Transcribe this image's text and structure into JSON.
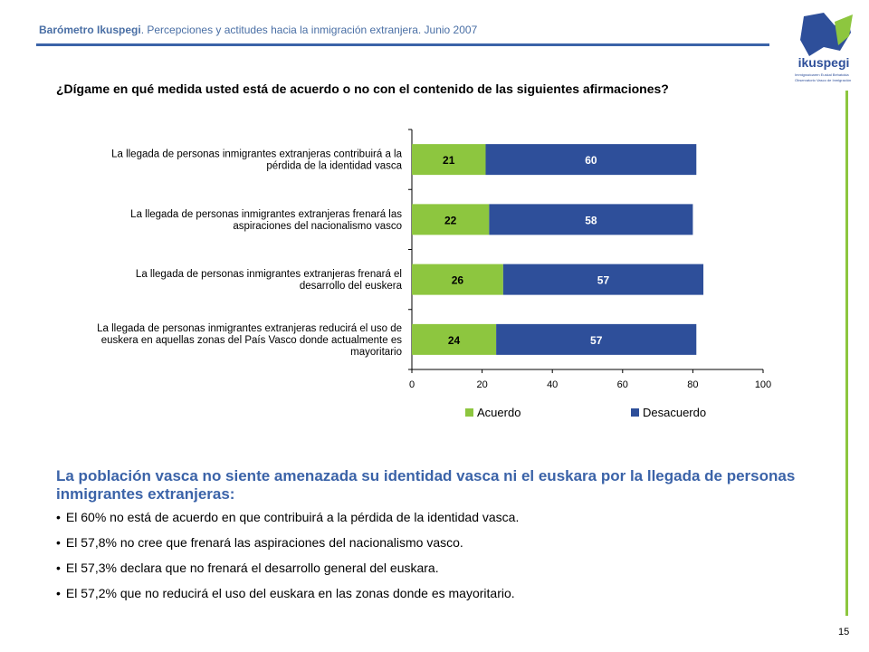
{
  "header": {
    "title_bold": "Barómetro Ikuspegi",
    "title_rest": ". Percepciones y actitudes hacia la inmigración extranjera. Junio 2007"
  },
  "logo": {
    "name": "ikuspegi",
    "subtitle_line1": "Immigrazioaren Euskal Behatokia",
    "subtitle_line2": "Observatorio Vasco de Inmigración",
    "colors": {
      "blue": "#2e4f9a",
      "green": "#8dc63f"
    }
  },
  "question": "¿Dígame en qué medida usted está de acuerdo o no con el contenido de las siguientes afirmaciones?",
  "chart_data": {
    "type": "bar",
    "orientation": "horizontal",
    "stacked": true,
    "categories": [
      [
        "La llegada de personas inmigrantes extranjeras contribuirá a la",
        "pérdida de la identidad vasca"
      ],
      [
        "La llegada de personas inmigrantes extranjeras frenará las",
        "aspiraciones del nacionalismo vasco"
      ],
      [
        "La llegada de personas inmigrantes extranjeras frenará el",
        "desarrollo del euskera"
      ],
      [
        "La llegada de personas inmigrantes extranjeras reducirá el uso de",
        "euskera en aquellas zonas del País Vasco donde actualmente es",
        "mayoritario"
      ]
    ],
    "series": [
      {
        "name": "Acuerdo",
        "color": "#8dc63f",
        "values": [
          21,
          22,
          26,
          24
        ]
      },
      {
        "name": "Desacuerdo",
        "color": "#2e4f9a",
        "values": [
          60,
          58,
          57,
          57
        ]
      }
    ],
    "xlim": [
      0,
      100
    ],
    "xticks": [
      0,
      20,
      40,
      60,
      80,
      100
    ],
    "legend": "bottom",
    "grid": false
  },
  "summary": {
    "title": "La población vasca no siente amenazada su identidad vasca ni el euskara por la llegada de personas inmigrantes extranjeras:",
    "bullets": [
      "El 60% no está de acuerdo en que contribuirá a la pérdida de la identidad vasca.",
      "El 57,8% no cree que frenará las aspiraciones del nacionalismo vasco.",
      "El 57,3% declara que no frenará el desarrollo general del euskara.",
      "El 57,2% que no reducirá el uso del euskara en las zonas donde es mayoritario."
    ]
  },
  "page_number": "15"
}
